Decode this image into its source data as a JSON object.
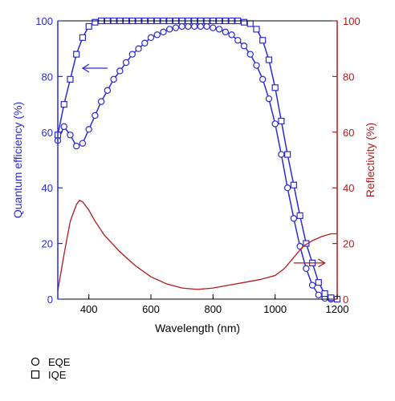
{
  "chart_data": {
    "type": "line",
    "title": "",
    "xlabel": "Wavelength (nm)",
    "ylabel_left": "Quantum efficiency (%)",
    "ylabel_right": "Reflectivity (%)",
    "xlim": [
      300,
      1200
    ],
    "ylim_left": [
      0,
      100
    ],
    "ylim_right": [
      0,
      100
    ],
    "x_ticks": [
      "400",
      "600",
      "800",
      "1000",
      "1200"
    ],
    "y_ticks_left": [
      "0",
      "20",
      "40",
      "60",
      "80",
      "100"
    ],
    "y_ticks_right": [
      "0",
      "20",
      "40",
      "60",
      "80",
      "100"
    ],
    "grid": false,
    "left_axis_color": "#2a2ad6",
    "right_axis_color": "#b01c1c",
    "legend": [
      {
        "marker": "circle",
        "label": "EQE"
      },
      {
        "marker": "square",
        "label": "IQE"
      }
    ],
    "series": [
      {
        "name": "EQE",
        "axis": "left",
        "marker": "circle",
        "color": "#2a2ad6",
        "x": [
          300,
          320,
          340,
          360,
          380,
          400,
          420,
          440,
          460,
          480,
          500,
          520,
          540,
          560,
          580,
          600,
          620,
          640,
          660,
          680,
          700,
          720,
          740,
          760,
          780,
          800,
          820,
          840,
          860,
          880,
          900,
          920,
          940,
          960,
          980,
          1000,
          1020,
          1040,
          1060,
          1080,
          1100,
          1120,
          1140,
          1160,
          1180,
          1200
        ],
        "y": [
          57,
          62,
          59,
          55,
          56,
          61,
          66,
          71,
          75,
          79,
          82,
          85,
          88,
          90,
          92,
          94,
          95,
          96,
          97,
          97.5,
          98,
          98,
          98,
          98,
          98,
          97.5,
          97,
          96,
          95,
          93,
          91,
          88,
          84,
          79,
          72,
          63,
          52,
          40,
          29,
          19,
          11,
          5,
          1.5,
          0.3,
          0,
          0
        ]
      },
      {
        "name": "IQE",
        "axis": "left",
        "marker": "square",
        "color": "#2a2ad6",
        "x": [
          300,
          320,
          340,
          360,
          380,
          400,
          420,
          440,
          460,
          480,
          500,
          520,
          540,
          560,
          580,
          600,
          620,
          640,
          660,
          680,
          700,
          720,
          740,
          760,
          780,
          800,
          820,
          840,
          860,
          880,
          900,
          920,
          940,
          960,
          980,
          1000,
          1020,
          1040,
          1060,
          1080,
          1100,
          1120,
          1140,
          1160,
          1180,
          1200
        ],
        "y": [
          59,
          70,
          79,
          88,
          94,
          98,
          99.5,
          100,
          100,
          100,
          100,
          100,
          100,
          100,
          100,
          100,
          100,
          100,
          100,
          100,
          100,
          100,
          100,
          100,
          100,
          100,
          100,
          100,
          100,
          100,
          99.5,
          99,
          97,
          93,
          86,
          76,
          64,
          52,
          41,
          30,
          20,
          13,
          6,
          2,
          0.5,
          0
        ]
      },
      {
        "name": "Reflectivity",
        "axis": "right",
        "marker": "none",
        "color": "#b01c1c",
        "x": [
          300,
          320,
          340,
          360,
          370,
          380,
          400,
          420,
          450,
          500,
          550,
          600,
          650,
          700,
          750,
          800,
          850,
          900,
          950,
          1000,
          1030,
          1060,
          1090,
          1120,
          1150,
          1180,
          1200
        ],
        "y": [
          3,
          16,
          28,
          34,
          35.5,
          35,
          32,
          28,
          23,
          17,
          12,
          8,
          5.5,
          4,
          3.5,
          4,
          5,
          6,
          7,
          8.5,
          11,
          15,
          19,
          21,
          22.5,
          23.5,
          23.5
        ]
      }
    ],
    "annotations": [
      {
        "type": "arrow",
        "direction": "left",
        "color": "#2a2ad6",
        "points_to": "left axis",
        "at": {
          "x": [
            380,
            460
          ],
          "y_left": 83
        }
      },
      {
        "type": "arrow",
        "direction": "right",
        "color": "#b01c1c",
        "points_to": "right axis",
        "at": {
          "x": [
            1060,
            1160
          ],
          "y_right": 13
        }
      }
    ]
  }
}
